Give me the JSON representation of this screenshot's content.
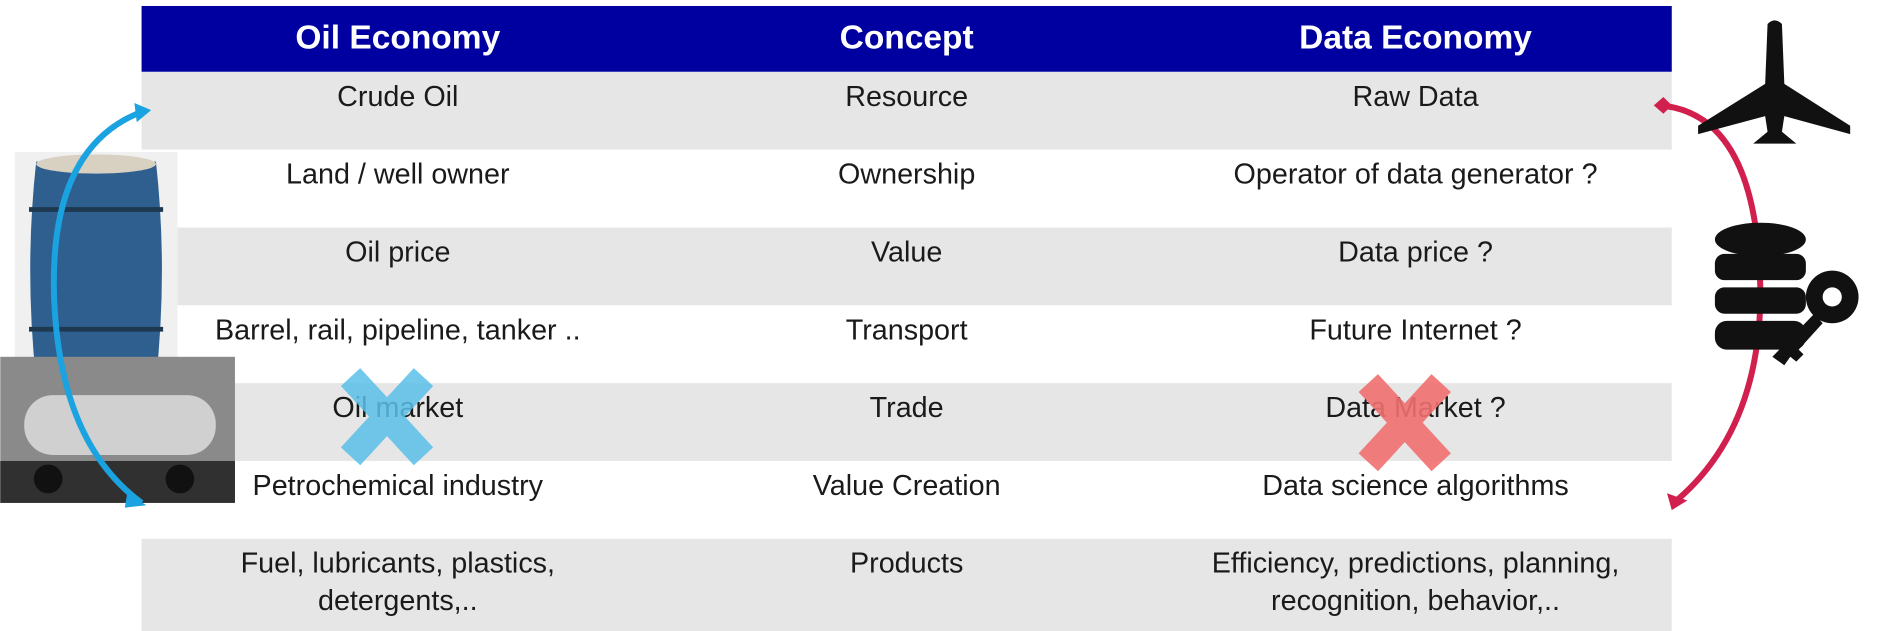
{
  "table": {
    "header": [
      "Oil Economy",
      "Concept",
      "Data Economy"
    ],
    "rows": [
      [
        [
          "Crude Oil"
        ],
        [
          "Resource"
        ],
        [
          "Raw Data"
        ]
      ],
      [
        [
          "Land / well owner"
        ],
        [
          "Ownership"
        ],
        [
          "Operator of data generator ?"
        ]
      ],
      [
        [
          "Oil price"
        ],
        [
          "Value"
        ],
        [
          "Data price ?"
        ]
      ],
      [
        [
          "Barrel, rail, pipeline, tanker .."
        ],
        [
          "Transport"
        ],
        [
          "Future Internet ?"
        ]
      ],
      [
        [
          "Oil market"
        ],
        [
          "Trade"
        ],
        [
          "Data Market ?"
        ]
      ],
      [
        [
          "Petrochemical industry"
        ],
        [
          "Value Creation"
        ],
        [
          "Data science algorithms"
        ]
      ],
      [
        [
          "Fuel, lubricants, plastics,",
          "detergents,.."
        ],
        [
          "Products"
        ],
        [
          "Efficiency, predictions, planning,",
          "recognition, behavior,.."
        ]
      ]
    ]
  }
}
